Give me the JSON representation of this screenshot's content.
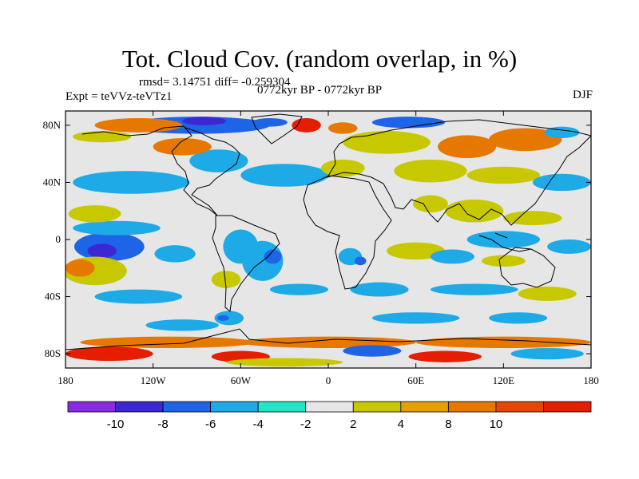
{
  "title": "Tot. Cloud Cov. (random overlap, in %)",
  "stats": "rmsd= 3.14751 diff= -0.259304",
  "experiment": "Expt = teVVz-teVTz1",
  "period": "0772kyr BP - 0772kyr BP",
  "season": "DJF",
  "map": {
    "projection": "cylindrical-equidistant",
    "lon_range": [
      -180,
      180
    ],
    "lat_range": [
      -90,
      90
    ],
    "x_ticks": [
      {
        "value": -180,
        "label": "180"
      },
      {
        "value": -120,
        "label": "120W"
      },
      {
        "value": -60,
        "label": "60W"
      },
      {
        "value": 0,
        "label": "0"
      },
      {
        "value": 60,
        "label": "60E"
      },
      {
        "value": 120,
        "label": "120E"
      },
      {
        "value": 180,
        "label": "180"
      }
    ],
    "y_ticks": [
      {
        "value": 80,
        "label": "80N"
      },
      {
        "value": 40,
        "label": "40N"
      },
      {
        "value": 0,
        "label": "0"
      },
      {
        "value": -40,
        "label": "40S"
      },
      {
        "value": -80,
        "label": "80S"
      }
    ],
    "background_color": "#e6e6e6",
    "blobs": [
      {
        "lon": -150,
        "lat": -5,
        "rlon": 24,
        "rlat": 10,
        "level": -6
      },
      {
        "lon": -155,
        "lat": -8,
        "rlon": 10,
        "rlat": 5,
        "level": -10
      },
      {
        "lon": -105,
        "lat": -10,
        "rlon": 14,
        "rlat": 6,
        "level": -4
      },
      {
        "lon": -145,
        "lat": 8,
        "rlon": 30,
        "rlat": 5,
        "level": -4
      },
      {
        "lon": -135,
        "lat": 40,
        "rlon": 40,
        "rlat": 8,
        "level": -4
      },
      {
        "lon": -160,
        "lat": 18,
        "rlon": 18,
        "rlat": 6,
        "level": 4
      },
      {
        "lon": -160,
        "lat": -22,
        "rlon": 22,
        "rlat": 10,
        "level": 4
      },
      {
        "lon": -170,
        "lat": -20,
        "rlon": 10,
        "rlat": 6,
        "level": 8
      },
      {
        "lon": -130,
        "lat": -40,
        "rlon": 30,
        "rlat": 5,
        "level": -4
      },
      {
        "lon": -60,
        "lat": -5,
        "rlon": 12,
        "rlat": 12,
        "level": -4
      },
      {
        "lon": -45,
        "lat": -15,
        "rlon": 14,
        "rlat": 14,
        "level": -4
      },
      {
        "lon": -38,
        "lat": -12,
        "rlon": 6,
        "rlat": 5,
        "level": -8
      },
      {
        "lon": -68,
        "lat": -55,
        "rlon": 10,
        "rlat": 5,
        "level": -4
      },
      {
        "lon": -72,
        "lat": -55,
        "rlon": 4,
        "rlat": 2,
        "level": -8
      },
      {
        "lon": -70,
        "lat": -28,
        "rlon": 10,
        "rlat": 6,
        "level": 4
      },
      {
        "lon": -30,
        "lat": 45,
        "rlon": 30,
        "rlat": 8,
        "level": -4
      },
      {
        "lon": -75,
        "lat": 55,
        "rlon": 20,
        "rlat": 8,
        "level": -4
      },
      {
        "lon": -90,
        "lat": 80,
        "rlon": 50,
        "rlat": 6,
        "level": -6
      },
      {
        "lon": -85,
        "lat": 83,
        "rlon": 15,
        "rlat": 3,
        "level": -10
      },
      {
        "lon": -40,
        "lat": 82,
        "rlon": 12,
        "rlat": 3,
        "level": -8
      },
      {
        "lon": -130,
        "lat": 80,
        "rlon": 30,
        "rlat": 5,
        "level": 8
      },
      {
        "lon": -155,
        "lat": 72,
        "rlon": 20,
        "rlat": 4,
        "level": 4
      },
      {
        "lon": -100,
        "lat": 65,
        "rlon": 20,
        "rlat": 6,
        "level": 8
      },
      {
        "lon": -15,
        "lat": 80,
        "rlon": 10,
        "rlat": 5,
        "level": 10
      },
      {
        "lon": 10,
        "lat": 78,
        "rlon": 10,
        "rlat": 4,
        "level": 8
      },
      {
        "lon": 40,
        "lat": 68,
        "rlon": 30,
        "rlat": 8,
        "level": 4
      },
      {
        "lon": 55,
        "lat": 82,
        "rlon": 25,
        "rlat": 4,
        "level": -6
      },
      {
        "lon": 95,
        "lat": 65,
        "rlon": 20,
        "rlat": 8,
        "level": 8
      },
      {
        "lon": 135,
        "lat": 70,
        "rlon": 25,
        "rlat": 8,
        "level": 8
      },
      {
        "lon": 160,
        "lat": 75,
        "rlon": 12,
        "rlat": 4,
        "level": -4
      },
      {
        "lon": 10,
        "lat": 50,
        "rlon": 15,
        "rlat": 6,
        "level": 4
      },
      {
        "lon": 70,
        "lat": 48,
        "rlon": 25,
        "rlat": 8,
        "level": 4
      },
      {
        "lon": 120,
        "lat": 45,
        "rlon": 25,
        "rlat": 6,
        "level": 4
      },
      {
        "lon": 160,
        "lat": 40,
        "rlon": 20,
        "rlat": 6,
        "level": -4
      },
      {
        "lon": 100,
        "lat": 20,
        "rlon": 20,
        "rlat": 8,
        "level": 4
      },
      {
        "lon": 70,
        "lat": 25,
        "rlon": 12,
        "rlat": 6,
        "level": 4
      },
      {
        "lon": 140,
        "lat": 15,
        "rlon": 20,
        "rlat": 5,
        "level": 4
      },
      {
        "lon": 120,
        "lat": 0,
        "rlon": 25,
        "rlat": 6,
        "level": -4
      },
      {
        "lon": 165,
        "lat": -5,
        "rlon": 15,
        "rlat": 5,
        "level": -4
      },
      {
        "lon": 60,
        "lat": -8,
        "rlon": 20,
        "rlat": 6,
        "level": 4
      },
      {
        "lon": 85,
        "lat": -12,
        "rlon": 15,
        "rlat": 5,
        "level": -4
      },
      {
        "lon": 120,
        "lat": -15,
        "rlon": 15,
        "rlat": 4,
        "level": 4
      },
      {
        "lon": 15,
        "lat": -12,
        "rlon": 8,
        "rlat": 6,
        "level": -4
      },
      {
        "lon": 22,
        "lat": -15,
        "rlon": 4,
        "rlat": 3,
        "level": -6
      },
      {
        "lon": 35,
        "lat": -35,
        "rlon": 20,
        "rlat": 5,
        "level": -4
      },
      {
        "lon": -20,
        "lat": -35,
        "rlon": 20,
        "rlat": 4,
        "level": -4
      },
      {
        "lon": 100,
        "lat": -35,
        "rlon": 30,
        "rlat": 4,
        "level": -4
      },
      {
        "lon": 150,
        "lat": -38,
        "rlon": 20,
        "rlat": 5,
        "level": 4
      },
      {
        "lon": -100,
        "lat": -60,
        "rlon": 25,
        "rlat": 4,
        "level": -4
      },
      {
        "lon": 60,
        "lat": -55,
        "rlon": 30,
        "rlat": 4,
        "level": -4
      },
      {
        "lon": 130,
        "lat": -55,
        "rlon": 20,
        "rlat": 4,
        "level": -4
      },
      {
        "lon": -110,
        "lat": -72,
        "rlon": 60,
        "rlat": 4,
        "level": 8
      },
      {
        "lon": 0,
        "lat": -72,
        "rlon": 60,
        "rlat": 4,
        "level": 8
      },
      {
        "lon": 120,
        "lat": -72,
        "rlon": 60,
        "rlat": 4,
        "level": 8
      },
      {
        "lon": -150,
        "lat": -80,
        "rlon": 30,
        "rlat": 5,
        "level": 10
      },
      {
        "lon": -60,
        "lat": -82,
        "rlon": 20,
        "rlat": 4,
        "level": 10
      },
      {
        "lon": 30,
        "lat": -78,
        "rlon": 20,
        "rlat": 4,
        "level": -6
      },
      {
        "lon": 80,
        "lat": -82,
        "rlon": 25,
        "rlat": 4,
        "level": 10
      },
      {
        "lon": 150,
        "lat": -80,
        "rlon": 25,
        "rlat": 4,
        "level": -4
      },
      {
        "lon": -30,
        "lat": -86,
        "rlon": 40,
        "rlat": 3,
        "level": 4
      }
    ]
  },
  "colorbar": {
    "colors": [
      "#8a2be2",
      "#3c28d2",
      "#1e64e6",
      "#1eaae6",
      "#23e6c8",
      "#e6e6e6",
      "#c8c800",
      "#e6a000",
      "#e67800",
      "#e64600",
      "#e61e00"
    ],
    "labels": [
      "-10",
      "-8",
      "-6",
      "-4",
      "-2",
      "2",
      "4",
      "8",
      "10"
    ]
  }
}
